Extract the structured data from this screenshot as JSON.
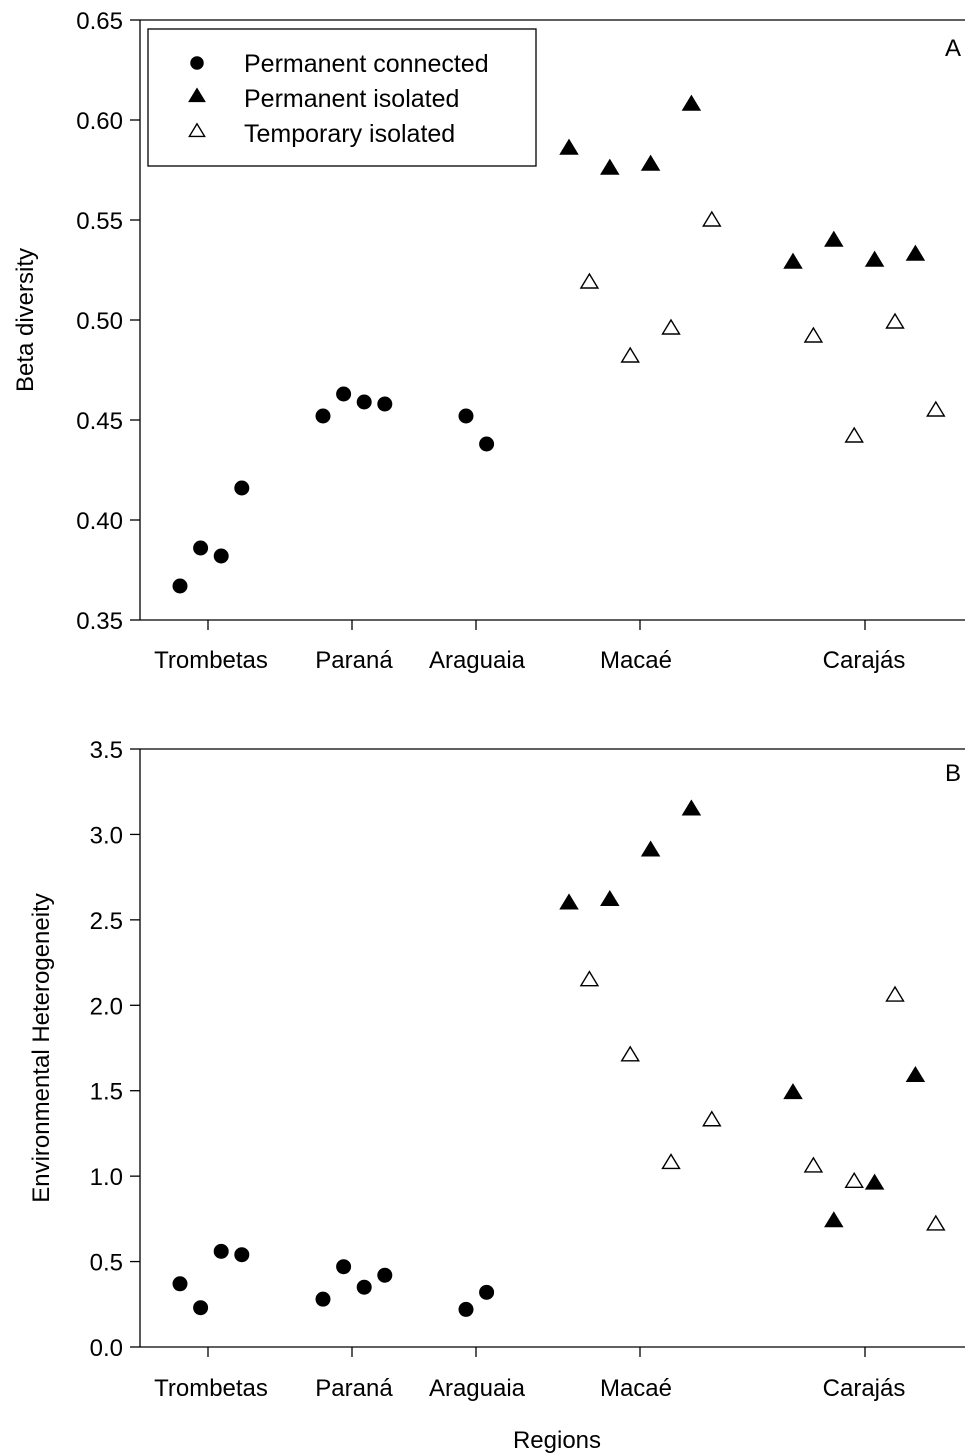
{
  "xlabel": "Regions",
  "legend": [
    {
      "key": "permanent_connected",
      "label": "Permanent connected",
      "marker": "filled-circle"
    },
    {
      "key": "permanent_isolated",
      "label": "Permanent isolated",
      "marker": "filled-triangle"
    },
    {
      "key": "temporary_isolated",
      "label": "Temporary isolated",
      "marker": "open-triangle"
    }
  ],
  "chart_data": [
    {
      "type": "scatter",
      "panel": "A",
      "ylabel": "Beta diversity",
      "ylim": [
        0.35,
        0.65
      ],
      "yticks": [
        "0.35",
        "0.40",
        "0.45",
        "0.50",
        "0.55",
        "0.60",
        "0.65"
      ],
      "categories": [
        "Trombetas",
        "Paraná",
        "Araguaia",
        "Macaé",
        "Carajás"
      ],
      "series": [
        {
          "key": "permanent_connected",
          "points": [
            {
              "region": "Trombetas",
              "y": 0.367
            },
            {
              "region": "Trombetas",
              "y": 0.386
            },
            {
              "region": "Trombetas",
              "y": 0.382
            },
            {
              "region": "Trombetas",
              "y": 0.416
            },
            {
              "region": "Paraná",
              "y": 0.452
            },
            {
              "region": "Paraná",
              "y": 0.463
            },
            {
              "region": "Paraná",
              "y": 0.459
            },
            {
              "region": "Paraná",
              "y": 0.458
            },
            {
              "region": "Araguaia",
              "y": 0.452
            },
            {
              "region": "Araguaia",
              "y": 0.438
            }
          ]
        },
        {
          "key": "permanent_isolated",
          "points": [
            {
              "region": "Macaé",
              "y": 0.586
            },
            {
              "region": "Macaé",
              "y": 0.576
            },
            {
              "region": "Macaé",
              "y": 0.578
            },
            {
              "region": "Macaé",
              "y": 0.608
            },
            {
              "region": "Carajás",
              "y": 0.529
            },
            {
              "region": "Carajás",
              "y": 0.54
            },
            {
              "region": "Carajás",
              "y": 0.53
            },
            {
              "region": "Carajás",
              "y": 0.533
            }
          ]
        },
        {
          "key": "temporary_isolated",
          "points": [
            {
              "region": "Macaé",
              "y": 0.519
            },
            {
              "region": "Macaé",
              "y": 0.482
            },
            {
              "region": "Macaé",
              "y": 0.496
            },
            {
              "region": "Macaé",
              "y": 0.55
            },
            {
              "region": "Carajás",
              "y": 0.492
            },
            {
              "region": "Carajás",
              "y": 0.442
            },
            {
              "region": "Carajás",
              "y": 0.499
            },
            {
              "region": "Carajás",
              "y": 0.455
            }
          ]
        }
      ]
    },
    {
      "type": "scatter",
      "panel": "B",
      "ylabel": "Environmental Heterogeneity",
      "ylim": [
        0.0,
        3.5
      ],
      "yticks": [
        "0.0",
        "0.5",
        "1.0",
        "1.5",
        "2.0",
        "2.5",
        "3.0",
        "3.5"
      ],
      "categories": [
        "Trombetas",
        "Paraná",
        "Araguaia",
        "Macaé",
        "Carajás"
      ],
      "series": [
        {
          "key": "permanent_connected",
          "points": [
            {
              "region": "Trombetas",
              "y": 0.37
            },
            {
              "region": "Trombetas",
              "y": 0.23
            },
            {
              "region": "Trombetas",
              "y": 0.56
            },
            {
              "region": "Trombetas",
              "y": 0.54
            },
            {
              "region": "Paraná",
              "y": 0.28
            },
            {
              "region": "Paraná",
              "y": 0.47
            },
            {
              "region": "Paraná",
              "y": 0.35
            },
            {
              "region": "Paraná",
              "y": 0.42
            },
            {
              "region": "Araguaia",
              "y": 0.22
            },
            {
              "region": "Araguaia",
              "y": 0.32
            }
          ]
        },
        {
          "key": "permanent_isolated",
          "points": [
            {
              "region": "Macaé",
              "y": 2.6
            },
            {
              "region": "Macaé",
              "y": 2.62
            },
            {
              "region": "Macaé",
              "y": 2.91
            },
            {
              "region": "Macaé",
              "y": 3.15
            },
            {
              "region": "Carajás",
              "y": 1.49
            },
            {
              "region": "Carajás",
              "y": 0.74
            },
            {
              "region": "Carajás",
              "y": 0.96
            },
            {
              "region": "Carajás",
              "y": 1.59
            }
          ]
        },
        {
          "key": "temporary_isolated",
          "points": [
            {
              "region": "Macaé",
              "y": 2.15
            },
            {
              "region": "Macaé",
              "y": 1.71
            },
            {
              "region": "Macaé",
              "y": 1.08
            },
            {
              "region": "Macaé",
              "y": 1.33
            },
            {
              "region": "Carajás",
              "y": 1.06
            },
            {
              "region": "Carajás",
              "y": 0.97
            },
            {
              "region": "Carajás",
              "y": 2.06
            },
            {
              "region": "Carajás",
              "y": 0.72
            }
          ]
        }
      ]
    }
  ]
}
